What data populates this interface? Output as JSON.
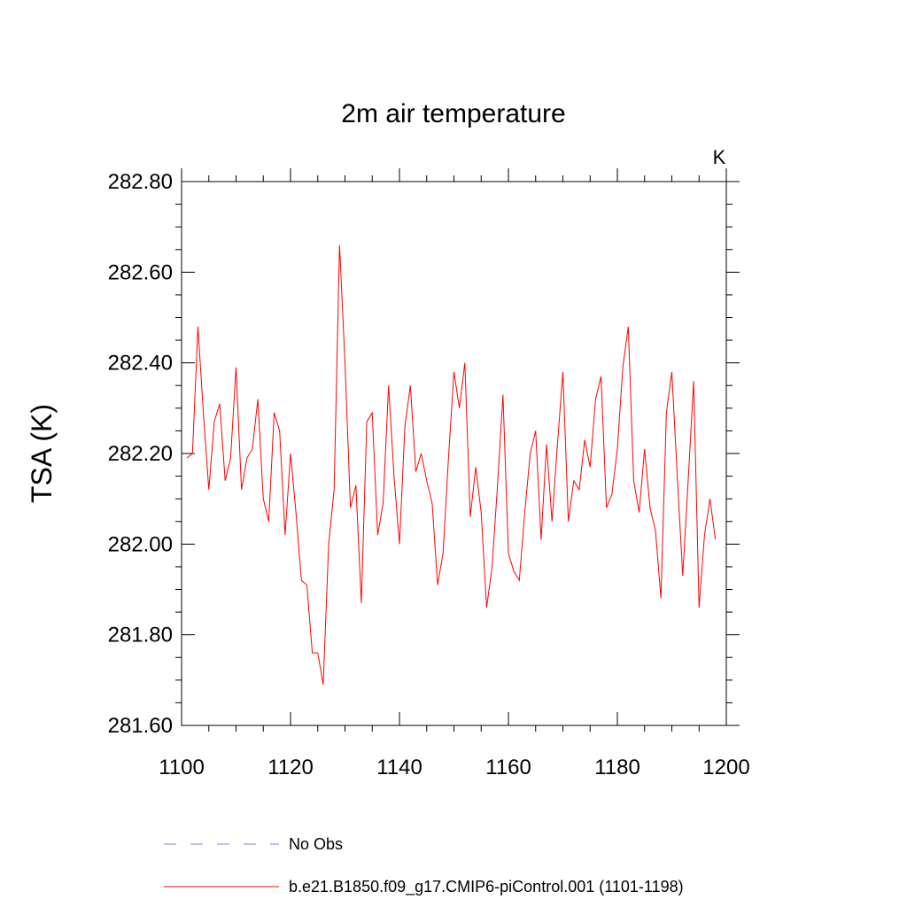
{
  "chart_data": {
    "type": "line",
    "title": "2m air temperature",
    "units_label": "K",
    "ylabel": "TSA  (K)",
    "xlabel": "",
    "xlim": [
      1100,
      1200
    ],
    "ylim": [
      281.6,
      282.8
    ],
    "x_ticks": [
      1100,
      1120,
      1140,
      1160,
      1180,
      1200
    ],
    "x_tick_labels": [
      "1100",
      "1120",
      "1140",
      "1160",
      "1180",
      "1200"
    ],
    "y_ticks": [
      281.6,
      281.8,
      282.0,
      282.2,
      282.4,
      282.6,
      282.8
    ],
    "y_tick_labels": [
      "281.60",
      "281.80",
      "282.00",
      "282.20",
      "282.40",
      "282.60",
      "282.80"
    ],
    "grid": false,
    "legend_position": "bottom",
    "series": [
      {
        "name": "No Obs",
        "style": "dashed",
        "color": "#8080c8",
        "values": []
      },
      {
        "name": "b.e21.B1850.f09_g17.CMIP6-piControl.001 (1101-1198)",
        "style": "solid",
        "color": "#ff0000",
        "x_start": 1101,
        "x_end": 1198,
        "values": [
          282.19,
          282.2,
          282.48,
          282.29,
          282.12,
          282.27,
          282.31,
          282.14,
          282.19,
          282.39,
          282.12,
          282.19,
          282.21,
          282.32,
          282.1,
          282.05,
          282.29,
          282.25,
          282.02,
          282.2,
          282.07,
          281.92,
          281.91,
          281.76,
          281.76,
          281.69,
          282.0,
          282.12,
          282.66,
          282.4,
          282.08,
          282.13,
          281.87,
          282.27,
          282.29,
          282.02,
          282.09,
          282.35,
          282.15,
          282.0,
          282.26,
          282.35,
          282.16,
          282.2,
          282.14,
          282.09,
          281.91,
          281.98,
          282.19,
          282.38,
          282.3,
          282.4,
          282.06,
          282.17,
          282.07,
          281.86,
          281.95,
          282.13,
          282.33,
          281.98,
          281.94,
          281.92,
          282.07,
          282.2,
          282.25,
          282.01,
          282.22,
          282.05,
          282.22,
          282.38,
          282.05,
          282.14,
          282.12,
          282.23,
          282.17,
          282.32,
          282.37,
          282.08,
          282.11,
          282.21,
          282.39,
          282.48,
          282.14,
          282.07,
          282.21,
          282.08,
          282.03,
          281.88,
          282.29,
          282.38,
          282.15,
          281.93,
          282.14,
          282.36,
          281.86,
          282.02,
          282.1,
          282.01
        ]
      }
    ]
  }
}
